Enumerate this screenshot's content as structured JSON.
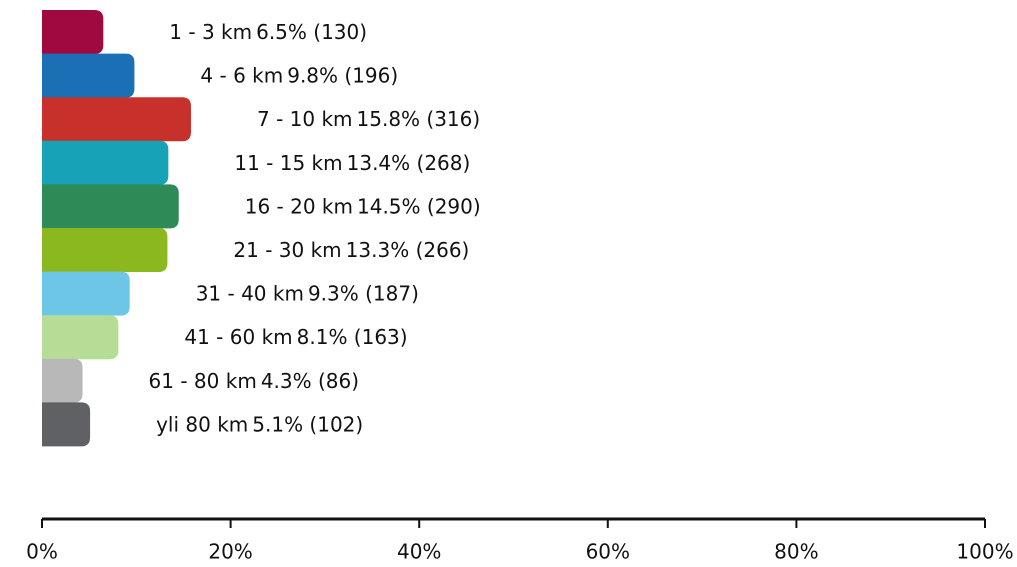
{
  "chart_data": {
    "type": "bar",
    "orientation": "horizontal",
    "categories": [
      "1 - 3 km",
      "4 - 6 km",
      "7 - 10 km",
      "11 - 15 km",
      "16 - 20 km",
      "21 - 30 km",
      "31 - 40 km",
      "41 - 60 km",
      "61 - 80 km",
      "yli 80 km"
    ],
    "values": [
      6.5,
      9.8,
      15.8,
      13.4,
      14.5,
      13.3,
      9.3,
      8.1,
      4.3,
      5.1
    ],
    "value_labels": [
      "6.5% (130)",
      "9.8% (196)",
      "15.8% (316)",
      "13.4% (268)",
      "14.5% (290)",
      "13.3% (266)",
      "9.3% (187)",
      "8.1% (163)",
      "4.3% (86)",
      "5.1% (102)"
    ],
    "colors": [
      "#a0093f",
      "#1a6fb5",
      "#c8302b",
      "#17a2b8",
      "#2e8b57",
      "#8ab81e",
      "#6ec6e6",
      "#b5dd95",
      "#b8b8b8",
      "#5f6165"
    ],
    "xlim": [
      0,
      100
    ],
    "xticks": [
      {
        "value": 0,
        "label": "0%"
      },
      {
        "value": 20,
        "label": "20%"
      },
      {
        "value": 40,
        "label": "40%"
      },
      {
        "value": 60,
        "label": "60%"
      },
      {
        "value": 80,
        "label": "80%"
      },
      {
        "value": 100,
        "label": "100%"
      }
    ]
  }
}
